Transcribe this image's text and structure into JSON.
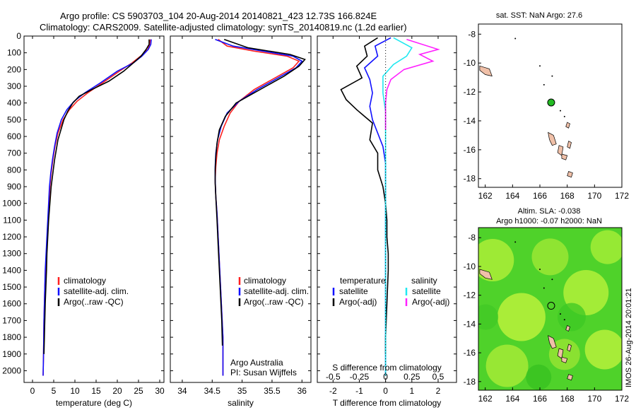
{
  "title": {
    "line1": "Argo profile: CS 5903703_104 20-Aug-2014 20140821_423 12.73S 166.824E",
    "line2": "Climatology: CARS2009. Satellite-adjusted climatology: synTS_20140819.nc (1.2d earlier)"
  },
  "credit": {
    "line1": "Argo Australia",
    "line2": "PI: Susan Wijffels"
  },
  "watermark": "IMOS 26-Aug-2014 20:01:21",
  "colors": {
    "climatology": "#ff2020",
    "satellite": "#1010ff",
    "argo": "#000000",
    "sal_satellite": "#20e8f0",
    "sal_argo": "#ff20ff",
    "map_sst": "#ffffff",
    "map_land": "#f0c0a8",
    "argo_marker": "#22bb22"
  },
  "chart_data": [
    {
      "type": "line",
      "name": "temperature-panel",
      "xlabel": "temperature (deg C)",
      "ylabel": "",
      "xlim": [
        -2,
        31
      ],
      "ylim": [
        2070,
        0
      ],
      "xticks": [
        0,
        5,
        10,
        15,
        20,
        25,
        30
      ],
      "yticks": [
        0,
        100,
        200,
        300,
        400,
        500,
        600,
        700,
        800,
        900,
        1000,
        1100,
        1200,
        1300,
        1400,
        1500,
        1600,
        1700,
        1800,
        1900,
        2000
      ],
      "legend": {
        "position": "lower-middle",
        "entries": [
          "climatology",
          "satellite-adj. clim.",
          "Argo(..raw -QC)"
        ]
      },
      "series": [
        {
          "name": "climatology",
          "color": "#ff2020",
          "x": [
            27.8,
            27.6,
            27.2,
            25.5,
            23.5,
            20.5,
            16.5,
            13,
            10.5,
            8.7,
            7.2,
            6.0,
            5.3,
            4.8,
            4.4,
            4.1,
            3.9,
            3.7,
            3.5,
            3.3,
            3.1,
            2.9,
            2.8,
            2.7,
            2.65,
            2.6,
            2.5
          ],
          "y": [
            20,
            50,
            80,
            120,
            160,
            210,
            280,
            340,
            390,
            440,
            500,
            580,
            660,
            740,
            820,
            900,
            1000,
            1100,
            1200,
            1300,
            1400,
            1500,
            1600,
            1700,
            1800,
            1900,
            2030
          ]
        },
        {
          "name": "satellite-adj. clim.",
          "color": "#1010ff",
          "x": [
            28.0,
            27.9,
            27.3,
            25.8,
            23.8,
            20.0,
            16.0,
            12.3,
            9.8,
            8.1,
            6.8,
            5.8,
            5.2,
            4.7,
            4.3,
            4.0,
            3.8,
            3.6,
            3.4,
            3.2,
            3.0,
            2.9,
            2.8,
            2.7,
            2.65,
            2.6,
            2.5
          ],
          "y": [
            20,
            50,
            80,
            120,
            160,
            210,
            280,
            340,
            390,
            440,
            500,
            580,
            660,
            740,
            820,
            900,
            1000,
            1100,
            1200,
            1300,
            1400,
            1500,
            1600,
            1700,
            1800,
            1900,
            2030
          ]
        },
        {
          "name": "Argo(..raw -QC)",
          "color": "#000000",
          "x": [
            27.5,
            27.5,
            26.8,
            25.6,
            23.8,
            21.5,
            18,
            14,
            11,
            9.5,
            8.3,
            7.4,
            6.7,
            6.0,
            5.6,
            5.2,
            4.8,
            4.4,
            4.1,
            3.8,
            3.6,
            3.4,
            3.3,
            3.15,
            3.0,
            2.9,
            2.8,
            2.7
          ],
          "y": [
            20,
            50,
            80,
            120,
            160,
            210,
            270,
            320,
            360,
            400,
            450,
            500,
            560,
            620,
            680,
            740,
            820,
            900,
            1000,
            1100,
            1200,
            1300,
            1400,
            1500,
            1600,
            1700,
            1800,
            1900
          ]
        }
      ]
    },
    {
      "type": "line",
      "name": "salinity-panel",
      "xlabel": "salinity",
      "ylabel": "",
      "xlim": [
        33.8,
        36.15
      ],
      "ylim": [
        2070,
        0
      ],
      "xticks": [
        34,
        34.5,
        35,
        35.5,
        36
      ],
      "legend": {
        "position": "lower-middle",
        "entries": [
          "climatology",
          "satellite-adj. clim.",
          "Argo(..raw -QC)"
        ]
      },
      "series": [
        {
          "name": "climatology",
          "color": "#ff2020",
          "x": [
            34.6,
            34.75,
            35.2,
            35.75,
            35.95,
            35.85,
            35.55,
            35.2,
            34.95,
            34.8,
            34.7,
            34.62,
            34.58,
            34.56,
            34.55,
            34.56,
            34.58,
            34.6,
            34.62,
            34.64,
            34.66,
            34.68,
            34.68,
            34.68
          ],
          "y": [
            20,
            60,
            90,
            120,
            150,
            190,
            250,
            320,
            390,
            460,
            540,
            620,
            700,
            780,
            860,
            960,
            1060,
            1200,
            1350,
            1500,
            1650,
            1800,
            1950,
            2030
          ]
        },
        {
          "name": "satellite-adj. clim.",
          "color": "#1010ff",
          "x": [
            34.55,
            34.85,
            35.35,
            35.85,
            36.0,
            35.9,
            35.6,
            35.25,
            34.95,
            34.75,
            34.65,
            34.59,
            34.56,
            34.55,
            34.55,
            34.56,
            34.58,
            34.6,
            34.62,
            34.64,
            34.66,
            34.68,
            34.68,
            34.68
          ],
          "y": [
            20,
            60,
            90,
            120,
            150,
            190,
            250,
            320,
            390,
            460,
            540,
            620,
            700,
            780,
            860,
            960,
            1060,
            1200,
            1350,
            1500,
            1650,
            1800,
            1950,
            2030
          ]
        },
        {
          "name": "Argo(..raw -QC)",
          "color": "#000000",
          "x": [
            34.7,
            35.1,
            35.8,
            36.05,
            35.95,
            35.7,
            35.3,
            34.9,
            34.72,
            34.62,
            34.58,
            34.56,
            34.55,
            34.55,
            34.56,
            34.58,
            34.6,
            34.62,
            34.64,
            34.66,
            34.67
          ],
          "y": [
            20,
            70,
            110,
            140,
            180,
            240,
            320,
            400,
            480,
            560,
            640,
            720,
            800,
            880,
            960,
            1100,
            1250,
            1400,
            1550,
            1700,
            1850
          ]
        }
      ]
    },
    {
      "type": "line",
      "name": "difference-panel",
      "xlabel": "T difference from climatology",
      "xlabel_top": "S difference from climatology",
      "xlim": [
        -2.6,
        2.7
      ],
      "ylim": [
        2070,
        0
      ],
      "xticks": [
        -2,
        -1,
        0,
        1,
        2
      ],
      "sticks_labels": [
        "-0.5",
        "-0.25",
        "0",
        "0.25",
        "0.5"
      ],
      "sticks_pos": [
        -2,
        -1,
        0,
        1,
        2
      ],
      "legend": {
        "position": "lower",
        "temperature_title": "temperature",
        "salinity_title": "salinity",
        "entries": [
          "satellite",
          "Argo(-adj)",
          "satellite",
          "Argo(-adj)"
        ]
      },
      "series": [
        {
          "name": "T satellite",
          "color": "#1010ff",
          "x": [
            0.2,
            -0.4,
            -0.3,
            -0.8,
            -0.6,
            -0.5,
            -0.6,
            -0.5,
            -0.3,
            -0.1,
            0.0,
            0.0,
            0.0,
            0.0,
            0.0,
            0.0,
            0.0,
            0.0,
            0.0
          ],
          "y": [
            10,
            60,
            120,
            190,
            260,
            340,
            420,
            500,
            580,
            660,
            760,
            900,
            1100,
            1300,
            1500,
            1700,
            1850,
            2000,
            2030
          ]
        },
        {
          "name": "T Argo(-adj)",
          "color": "#000000",
          "x": [
            -0.3,
            -0.8,
            -0.7,
            -1.1,
            -0.9,
            -1.7,
            -1.5,
            -1.1,
            -0.5,
            -0.6,
            -0.3,
            -0.3,
            -0.1,
            0.0,
            0.05,
            0.05,
            0.1,
            0.1,
            0.05,
            0.0,
            0.0
          ],
          "y": [
            10,
            60,
            120,
            180,
            250,
            320,
            380,
            440,
            520,
            620,
            700,
            800,
            900,
            1000,
            1100,
            1200,
            1300,
            1400,
            1600,
            1800,
            1900
          ]
        },
        {
          "name": "S satellite",
          "color": "#20e8f0",
          "x": [
            0.3,
            1.0,
            0.8,
            0.3,
            -0.1,
            -0.1,
            0.0,
            0.0,
            0.0,
            0.0,
            0.0,
            0.0,
            0.0
          ],
          "y": [
            10,
            70,
            120,
            170,
            240,
            340,
            450,
            600,
            800,
            1100,
            1500,
            1900,
            2030
          ]
        },
        {
          "name": "S Argo(-adj)",
          "color": "#ff20ff",
          "x": [
            0.8,
            2.0,
            1.3,
            1.8,
            0.7,
            0.2,
            0.05,
            0.0,
            0.0,
            0.0
          ],
          "y": [
            20,
            80,
            110,
            150,
            200,
            260,
            320,
            400,
            500,
            560
          ]
        }
      ]
    },
    {
      "type": "scatter",
      "name": "sst-map",
      "title": "sat. SST: NaN Argo: 27.6",
      "xlim": [
        161.5,
        172
      ],
      "ylim": [
        -18.6,
        -7.3
      ],
      "xticks": [
        162,
        164,
        166,
        168,
        170,
        172
      ],
      "yticks": [
        -8,
        -10,
        -12,
        -14,
        -16,
        -18
      ],
      "marker": {
        "lon": 166.824,
        "lat": -12.73
      }
    },
    {
      "type": "heatmap",
      "name": "sla-map",
      "title_line1": "Altim. SLA: -0.038",
      "title_line2": "Argo h1000: -0.07 h2000: NaN",
      "xlim": [
        161.5,
        172
      ],
      "ylim": [
        -18.6,
        -7.3
      ],
      "xticks": [
        162,
        164,
        166,
        168,
        170,
        172
      ],
      "yticks": [
        -8,
        -10,
        -12,
        -14,
        -16,
        -18
      ],
      "marker": {
        "lon": 166.824,
        "lat": -12.73
      }
    }
  ]
}
